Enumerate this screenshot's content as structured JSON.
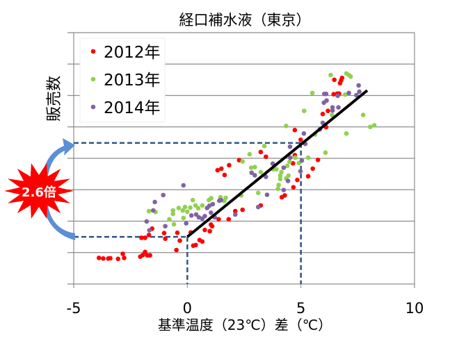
{
  "chart_data": {
    "type": "scatter",
    "title": "経口補水液（東京）",
    "xlabel": "基準温度（23℃）差（℃）",
    "ylabel": "販売数",
    "xlim": [
      -5,
      10
    ],
    "ylim": [
      0,
      8
    ],
    "x_ticks": [
      "-5",
      "0",
      "5",
      "10"
    ],
    "y_ticks_labeled": false,
    "grid": "horizontal",
    "legend_position": "top-left",
    "series": [
      {
        "name": "2012年",
        "color": "#ff0000",
        "points": [
          [
            -3.89,
            0.83
          ],
          [
            -3.7,
            0.81
          ],
          [
            -3.48,
            0.81
          ],
          [
            -3.39,
            0.82
          ],
          [
            -3.05,
            0.8
          ],
          [
            -2.84,
            0.96
          ],
          [
            -2.78,
            0.83
          ],
          [
            -2.07,
            0.87
          ],
          [
            -1.96,
            0.92
          ],
          [
            -1.86,
            1.02
          ],
          [
            -1.76,
            0.91
          ],
          [
            -1.64,
            0.91
          ],
          [
            -2.02,
            1.47
          ],
          [
            -1.86,
            1.47
          ],
          [
            -1.69,
            1.56
          ],
          [
            -1.55,
            1.76
          ],
          [
            -1.02,
            1.62
          ],
          [
            -0.97,
            1.44
          ],
          [
            -0.48,
            1.08
          ],
          [
            -0.44,
            1.63
          ],
          [
            -0.33,
            1.38
          ],
          [
            0.15,
            1.64
          ],
          [
            0.26,
            1.22
          ],
          [
            0.37,
            1.24
          ],
          [
            0.54,
            1.4
          ],
          [
            0.66,
            1.35
          ],
          [
            0.77,
            1.72
          ],
          [
            0.99,
            1.68
          ],
          [
            1.04,
            1.89
          ],
          [
            1.09,
            1.84
          ],
          [
            1.33,
            3.62
          ],
          [
            1.5,
            3.67
          ],
          [
            1.64,
            3.47
          ],
          [
            1.84,
            3.78
          ],
          [
            2.28,
            3.94
          ],
          [
            1.38,
            2.06
          ],
          [
            1.82,
            2.06
          ],
          [
            2.11,
            2.32
          ],
          [
            2.43,
            2.36
          ],
          [
            3.23,
            2.5
          ],
          [
            3.23,
            4.2
          ],
          [
            3.46,
            4.05
          ],
          [
            4.16,
            2.76
          ],
          [
            4.29,
            2.82
          ],
          [
            4.67,
            3.08
          ],
          [
            4.84,
            3.31
          ],
          [
            4.65,
            3.84
          ],
          [
            4.73,
            4.1
          ],
          [
            4.73,
            4.9
          ],
          [
            4.99,
            4.59
          ],
          [
            5.32,
            3.43
          ],
          [
            5.52,
            3.67
          ],
          [
            5.75,
            3.95
          ],
          [
            5.96,
            5.41
          ],
          [
            6.11,
            4.99
          ],
          [
            6.19,
            5.51
          ],
          [
            6.47,
            6.5
          ],
          [
            6.72,
            6.39
          ],
          [
            6.77,
            6.48
          ],
          [
            6.81,
            6.56
          ],
          [
            6.44,
            6.04
          ],
          [
            6.6,
            6.06
          ],
          [
            6.68,
            6.06
          ]
        ]
      },
      {
        "name": "2013年",
        "color": "#92d050",
        "points": [
          [
            -1.69,
            2.32
          ],
          [
            -1.4,
            2.29
          ],
          [
            -0.63,
            2.34
          ],
          [
            -0.63,
            2.23
          ],
          [
            -0.79,
            2.06
          ],
          [
            -0.59,
            1.9
          ],
          [
            -0.38,
            2.42
          ],
          [
            -0.2,
            2.34
          ],
          [
            -0.1,
            2.45
          ],
          [
            0.0,
            2.3
          ],
          [
            -0.17,
            2.1
          ],
          [
            0.13,
            2.43
          ],
          [
            0.24,
            2.67
          ],
          [
            0.36,
            2.5
          ],
          [
            0.48,
            2.41
          ],
          [
            0.66,
            2.5
          ],
          [
            0.95,
            2.67
          ],
          [
            1.05,
            2.73
          ],
          [
            1.46,
            2.76
          ],
          [
            1.69,
            2.74
          ],
          [
            1.62,
            2.64
          ],
          [
            2.37,
            2.82
          ],
          [
            2.43,
            3.9
          ],
          [
            2.74,
            4.13
          ],
          [
            2.81,
            3.7
          ],
          [
            2.97,
            3.72
          ],
          [
            3.23,
            3.56
          ],
          [
            3.12,
            2.9
          ],
          [
            3.39,
            4.39
          ],
          [
            3.78,
            3.65
          ],
          [
            3.92,
            3.65
          ],
          [
            4.02,
            3.15
          ],
          [
            3.99,
            3.03
          ],
          [
            4.09,
            3.45
          ],
          [
            4.14,
            3.56
          ],
          [
            4.09,
            3.34
          ],
          [
            4.35,
            3.36
          ],
          [
            4.45,
            3.45
          ],
          [
            4.5,
            3.89
          ],
          [
            4.4,
            3.76
          ],
          [
            4.75,
            4.02
          ],
          [
            4.91,
            3.85
          ],
          [
            5.32,
            4.02
          ],
          [
            6.08,
            4.18
          ],
          [
            4.35,
            5.03
          ],
          [
            5.14,
            5.51
          ],
          [
            5.5,
            6.08
          ],
          [
            5.62,
            4.76
          ],
          [
            6.37,
            5.38
          ],
          [
            6.31,
            6.65
          ],
          [
            6.95,
            6.03
          ],
          [
            7.0,
            6.7
          ],
          [
            7.11,
            6.65
          ],
          [
            7.19,
            6.6
          ],
          [
            7.0,
            4.79
          ],
          [
            7.74,
            5.38
          ],
          [
            8.05,
            5.0
          ],
          [
            8.23,
            5.05
          ]
        ]
      },
      {
        "name": "2014年",
        "color": "#8064a2",
        "points": [
          [
            -1.79,
            1.99
          ],
          [
            -1.67,
            1.71
          ],
          [
            -1.5,
            2.34
          ],
          [
            -1.43,
            2.61
          ],
          [
            -1.06,
            2.83
          ],
          [
            -0.97,
            1.84
          ],
          [
            -0.17,
            3.14
          ],
          [
            -0.05,
            1.93
          ],
          [
            0.18,
            2.18
          ],
          [
            0.39,
            2.21
          ],
          [
            0.51,
            2.12
          ],
          [
            0.66,
            2.08
          ],
          [
            0.77,
            2.16
          ],
          [
            0.87,
            2.42
          ],
          [
            0.97,
            2.49
          ],
          [
            1.04,
            2.27
          ],
          [
            1.12,
            2.54
          ],
          [
            1.21,
            2.12
          ],
          [
            1.41,
            2.65
          ],
          [
            1.48,
            2.67
          ],
          [
            2.11,
            2.21
          ],
          [
            3.12,
            2.45
          ],
          [
            2.83,
            3.54
          ],
          [
            2.97,
            3.46
          ],
          [
            3.46,
            3.41
          ],
          [
            3.51,
            2.84
          ],
          [
            3.76,
            3.83
          ],
          [
            4.24,
            3.7
          ],
          [
            4.24,
            2.99
          ],
          [
            4.43,
            3.28
          ],
          [
            4.52,
            4.37
          ],
          [
            4.53,
            4.02
          ],
          [
            4.98,
            3.59
          ],
          [
            5.04,
            3.93
          ],
          [
            5.13,
            4.79
          ],
          [
            5.19,
            4.46
          ],
          [
            5.83,
            4.92
          ],
          [
            5.96,
            5.13
          ],
          [
            6.01,
            5.77
          ],
          [
            6.13,
            5.84
          ],
          [
            6.39,
            5.62
          ],
          [
            6.39,
            5.52
          ],
          [
            6.65,
            5.62
          ],
          [
            6.03,
            6.05
          ],
          [
            6.11,
            6.05
          ],
          [
            6.62,
            5.99
          ],
          [
            7.11,
            6.08
          ],
          [
            7.44,
            6.01
          ],
          [
            7.57,
            6.12
          ],
          [
            7.54,
            6.32
          ]
        ]
      }
    ],
    "trend_line": {
      "color": "#000000",
      "from": [
        0,
        1.5
      ],
      "to": [
        7.92,
        6.16
      ]
    },
    "reference_lines": [
      {
        "x": 0,
        "y": 1.5
      },
      {
        "x": 5,
        "y": 4.49
      }
    ],
    "reference_color": "#2e5487",
    "annotation": {
      "text": "2.6倍",
      "burst_color": "#ff0000",
      "arrow_color": "#5b8fd6"
    }
  }
}
